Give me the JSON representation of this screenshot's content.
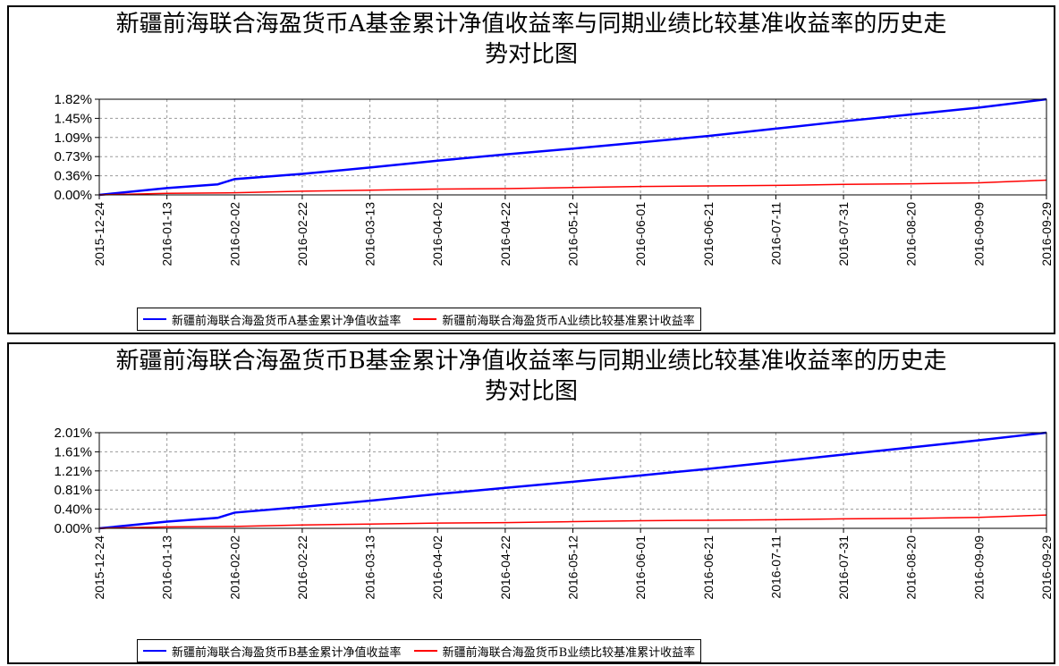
{
  "chart_data": [
    {
      "type": "line",
      "title": "新疆前海联合海盈货币A基金累计净值收益率与同期业绩比较基准收益率的历史走势对比图",
      "title_lines": [
        "新疆前海联合海盈货币A基金累计净值收益率与同期业绩比较基准收益率的历史走",
        "势对比图"
      ],
      "x_tick_labels": [
        "2015-12-24",
        "2016-01-13",
        "2016-02-02",
        "2016-02-22",
        "2016-03-13",
        "2016-04-02",
        "2016-04-22",
        "2016-05-12",
        "2016-06-01",
        "2016-06-21",
        "2016-07-11",
        "2016-07-31",
        "2016-08-20",
        "2016-09-09",
        "2016-09-29"
      ],
      "y_tick_labels": [
        "0.00%",
        "0.36%",
        "0.73%",
        "1.09%",
        "1.45%",
        "1.82%"
      ],
      "ylim": [
        0,
        1.82
      ],
      "grid": true,
      "legend_position": "bottom",
      "series": [
        {
          "name": "新疆前海联合海盈货币A基金累计净值收益率",
          "color": "#0000ff",
          "x": [
            "2015-12-24",
            "2016-01-13",
            "2016-01-28",
            "2016-02-02",
            "2016-02-22",
            "2016-03-13",
            "2016-04-02",
            "2016-04-22",
            "2016-05-12",
            "2016-06-01",
            "2016-06-21",
            "2016-07-11",
            "2016-07-31",
            "2016-08-20",
            "2016-09-09",
            "2016-09-29"
          ],
          "values": [
            0.0,
            0.13,
            0.2,
            0.3,
            0.4,
            0.52,
            0.65,
            0.77,
            0.88,
            1.0,
            1.12,
            1.26,
            1.4,
            1.53,
            1.66,
            1.82
          ]
        },
        {
          "name": "新疆前海联合海盈货币A业绩比较基准累计收益率",
          "color": "#ff0000",
          "x": [
            "2015-12-24",
            "2016-01-13",
            "2016-02-02",
            "2016-02-22",
            "2016-03-13",
            "2016-04-02",
            "2016-04-22",
            "2016-05-12",
            "2016-06-01",
            "2016-06-21",
            "2016-07-11",
            "2016-07-31",
            "2016-08-20",
            "2016-09-09",
            "2016-09-29"
          ],
          "values": [
            0.0,
            0.03,
            0.04,
            0.07,
            0.09,
            0.11,
            0.12,
            0.14,
            0.16,
            0.17,
            0.18,
            0.2,
            0.21,
            0.23,
            0.28
          ]
        }
      ]
    },
    {
      "type": "line",
      "title": "新疆前海联合海盈货币B基金累计净值收益率与同期业绩比较基准收益率的历史走势对比图",
      "title_lines": [
        "新疆前海联合海盈货币B基金累计净值收益率与同期业绩比较基准收益率的历史走",
        "势对比图"
      ],
      "x_tick_labels": [
        "2015-12-24",
        "2016-01-13",
        "2016-02-02",
        "2016-02-22",
        "2016-03-13",
        "2016-04-02",
        "2016-04-22",
        "2016-05-12",
        "2016-06-01",
        "2016-06-21",
        "2016-07-11",
        "2016-07-31",
        "2016-08-20",
        "2016-09-09",
        "2016-09-29"
      ],
      "y_tick_labels": [
        "0.00%",
        "0.40%",
        "0.81%",
        "1.21%",
        "1.61%",
        "2.01%"
      ],
      "ylim": [
        0,
        2.01
      ],
      "grid": true,
      "legend_position": "bottom",
      "series": [
        {
          "name": "新疆前海联合海盈货币B基金累计净值收益率",
          "color": "#0000ff",
          "x": [
            "2015-12-24",
            "2016-01-13",
            "2016-01-28",
            "2016-02-02",
            "2016-02-22",
            "2016-03-13",
            "2016-04-02",
            "2016-04-22",
            "2016-05-12",
            "2016-06-01",
            "2016-06-21",
            "2016-07-11",
            "2016-07-31",
            "2016-08-20",
            "2016-09-09",
            "2016-09-29"
          ],
          "values": [
            0.0,
            0.14,
            0.22,
            0.33,
            0.45,
            0.58,
            0.72,
            0.85,
            0.98,
            1.11,
            1.25,
            1.4,
            1.55,
            1.7,
            1.85,
            2.01
          ]
        },
        {
          "name": "新疆前海联合海盈货币B业绩比较基准累计收益率",
          "color": "#ff0000",
          "x": [
            "2015-12-24",
            "2016-01-13",
            "2016-02-02",
            "2016-02-22",
            "2016-03-13",
            "2016-04-02",
            "2016-04-22",
            "2016-05-12",
            "2016-06-01",
            "2016-06-21",
            "2016-07-11",
            "2016-07-31",
            "2016-08-20",
            "2016-09-09",
            "2016-09-29"
          ],
          "values": [
            0.0,
            0.03,
            0.04,
            0.07,
            0.09,
            0.11,
            0.12,
            0.14,
            0.16,
            0.17,
            0.18,
            0.2,
            0.21,
            0.23,
            0.28
          ]
        }
      ]
    }
  ]
}
